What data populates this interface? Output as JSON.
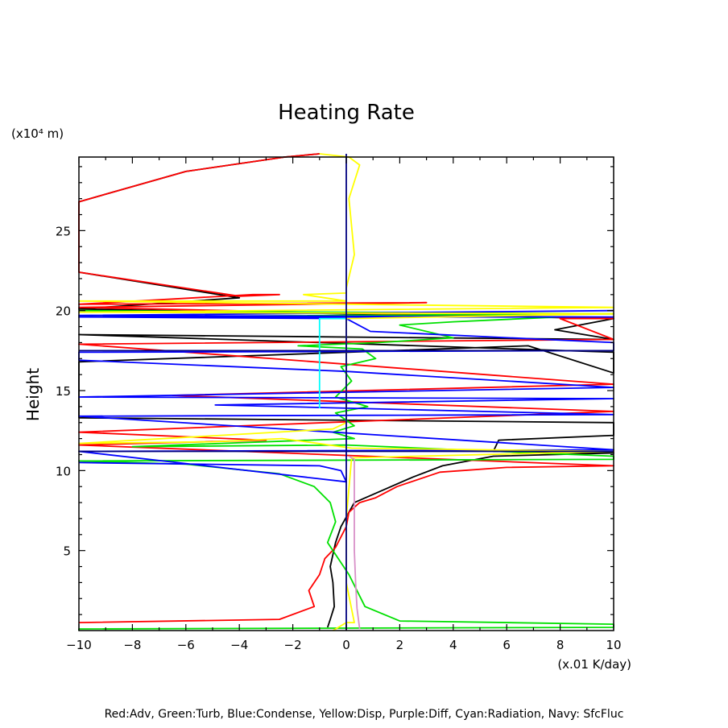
{
  "chart_data": {
    "type": "line",
    "title": "Heating Rate",
    "xlabel": "(x.01 K/day)",
    "ylabel": "Height",
    "y_unit_label": "(x10⁴ m)",
    "xlim": [
      -10,
      10
    ],
    "ylim": [
      0,
      29.6
    ],
    "xticks": [
      "−10",
      "−8",
      "−6",
      "−4",
      "−2",
      "0",
      "2",
      "4",
      "6",
      "8",
      "10"
    ],
    "yticks": [
      "5",
      "10",
      "15",
      "20",
      "25"
    ],
    "ytick_values": [
      5,
      10,
      15,
      20,
      25
    ],
    "grid": false,
    "legend_text": "Red:Adv, Green:Turb, Blue:Condense, Yellow:Disp, Purple:Diff, Cyan:Radiation, Navy: SfcFluc",
    "series": [
      {
        "color": "#000000",
        "points": [
          [
            -0.7,
            0.2
          ],
          [
            -0.6,
            0.7
          ],
          [
            -0.45,
            1.5
          ],
          [
            -0.5,
            3
          ],
          [
            -0.6,
            4
          ],
          [
            -0.4,
            5.5
          ],
          [
            -0.2,
            6.5
          ],
          [
            0.3,
            8
          ],
          [
            1.4,
            8.8
          ],
          [
            2.5,
            9.6
          ],
          [
            3.6,
            10.3
          ],
          [
            5.5,
            10.9
          ],
          [
            10,
            11.1
          ],
          [
            5.5,
            11.2
          ],
          [
            5.7,
            11.9
          ],
          [
            10,
            12.2
          ],
          [
            10,
            13
          ],
          [
            -10,
            13.3
          ],
          [
            -10,
            16.8
          ],
          [
            6.8,
            17.8
          ],
          [
            10,
            16.1
          ],
          [
            10,
            17.4
          ],
          [
            -10,
            18.5
          ],
          [
            10,
            18.2
          ],
          [
            7.8,
            18.8
          ],
          [
            10,
            19.5
          ],
          [
            -10,
            20.1
          ],
          [
            -4,
            20.8
          ],
          [
            -10,
            22.4
          ],
          [
            -10,
            26.8
          ],
          [
            -6,
            28.7
          ],
          [
            -2.3,
            29.6
          ],
          [
            -1,
            29.8
          ]
        ]
      },
      {
        "color": "#ff0000",
        "points": [
          [
            -10,
            0.5
          ],
          [
            -2.5,
            0.7
          ],
          [
            -1.2,
            1.5
          ],
          [
            -1.4,
            2.5
          ],
          [
            -1.0,
            3.5
          ],
          [
            -0.8,
            4.5
          ],
          [
            -0.4,
            5.2
          ],
          [
            0,
            6.5
          ],
          [
            0.1,
            7.4
          ],
          [
            0.5,
            8
          ],
          [
            1.1,
            8.3
          ],
          [
            1.9,
            9
          ],
          [
            3.5,
            9.9
          ],
          [
            6,
            10.2
          ],
          [
            10,
            10.3
          ],
          [
            -10,
            11.6
          ],
          [
            -3,
            11.9
          ],
          [
            -10,
            12.4
          ],
          [
            10,
            13.7
          ],
          [
            -6.5,
            14.7
          ],
          [
            10,
            15.4
          ],
          [
            -10,
            17.9
          ],
          [
            10,
            18.2
          ],
          [
            8,
            19.5
          ],
          [
            10,
            19.5
          ],
          [
            -10,
            20.2
          ],
          [
            3,
            20.5
          ],
          [
            -10,
            20.4
          ],
          [
            -3.5,
            21.0
          ],
          [
            -2.5,
            21.0
          ],
          [
            -4,
            20.9
          ],
          [
            -10,
            22.4
          ],
          [
            -10,
            26.8
          ],
          [
            -6,
            28.7
          ],
          [
            -2.3,
            29.6
          ],
          [
            -1,
            29.8
          ]
        ]
      },
      {
        "color": "#00e000",
        "points": [
          [
            -10,
            0
          ],
          [
            -10,
            0.1
          ],
          [
            10,
            0.2
          ],
          [
            10,
            0.4
          ],
          [
            2,
            0.6
          ],
          [
            0.7,
            1.5
          ],
          [
            0.1,
            3.5
          ],
          [
            -0.7,
            5.5
          ],
          [
            -0.4,
            6.8
          ],
          [
            -0.6,
            8
          ],
          [
            -1.2,
            9
          ],
          [
            -2.5,
            9.8
          ],
          [
            -6,
            10.4
          ],
          [
            -10,
            10.6
          ],
          [
            10,
            10.7
          ],
          [
            10,
            10.9
          ],
          [
            0,
            11.6
          ],
          [
            -8,
            11.5
          ],
          [
            0.3,
            12.0
          ],
          [
            -0.5,
            12.4
          ],
          [
            0.3,
            12.8
          ],
          [
            -0.4,
            13.6
          ],
          [
            0.8,
            14.0
          ],
          [
            -0.4,
            14.6
          ],
          [
            0.2,
            15.6
          ],
          [
            -0.2,
            16.5
          ],
          [
            1.1,
            17.0
          ],
          [
            0.6,
            17.6
          ],
          [
            -1.8,
            17.8
          ],
          [
            1.2,
            18.0
          ],
          [
            4,
            18.3
          ],
          [
            2,
            19.1
          ],
          [
            4,
            19.3
          ],
          [
            8,
            19.6
          ],
          [
            -10,
            19.6
          ],
          [
            10,
            19.8
          ],
          [
            -10,
            20.0
          ]
        ]
      },
      {
        "color": "#0000ff",
        "points": [
          [
            -10,
            10.5
          ],
          [
            -1.0,
            10.3
          ],
          [
            -0.2,
            10.0
          ],
          [
            0,
            9.3
          ],
          [
            -10,
            11.2
          ],
          [
            10,
            11.3
          ],
          [
            -10,
            13.4
          ],
          [
            10,
            13.5
          ],
          [
            -4.9,
            14.1
          ],
          [
            10,
            14.5
          ],
          [
            -10,
            14.6
          ],
          [
            10,
            15.2
          ],
          [
            6,
            15.6
          ],
          [
            0,
            16.2
          ],
          [
            -10,
            16.9
          ],
          [
            -10,
            17.4
          ],
          [
            10,
            17.5
          ],
          [
            10,
            18.0
          ],
          [
            0.9,
            18.7
          ],
          [
            0,
            19.5
          ],
          [
            -10,
            19.6
          ],
          [
            10,
            19.6
          ],
          [
            -10,
            19.7
          ],
          [
            10,
            20.0
          ]
        ]
      },
      {
        "color": "#ffff00",
        "points": [
          [
            -0.5,
            0
          ],
          [
            0,
            0.5
          ],
          [
            0.3,
            0.5
          ],
          [
            0,
            3
          ],
          [
            0,
            7
          ],
          [
            0.2,
            10.8
          ],
          [
            10,
            11.2
          ],
          [
            0.2,
            11.4
          ],
          [
            -1.5,
            11.8
          ],
          [
            -2.4,
            12.0
          ],
          [
            -5,
            11.8
          ],
          [
            -10,
            11.7
          ],
          [
            -0.5,
            12.6
          ],
          [
            0,
            13.0
          ],
          [
            0,
            19.5
          ],
          [
            10,
            19.8
          ],
          [
            -10,
            19.9
          ],
          [
            10,
            20.2
          ],
          [
            -10,
            20.6
          ],
          [
            0,
            20.6
          ],
          [
            -1.6,
            21.0
          ],
          [
            0,
            21.1
          ],
          [
            0,
            21.4
          ],
          [
            0.3,
            23.5
          ],
          [
            0.1,
            27
          ],
          [
            0.5,
            29.1
          ],
          [
            0.1,
            29.6
          ],
          [
            -1,
            29.8
          ]
        ]
      },
      {
        "color": "#d890c8",
        "points": [
          [
            0.5,
            0.1
          ],
          [
            0.4,
            1.4
          ],
          [
            0.35,
            3
          ],
          [
            0.3,
            5
          ],
          [
            0.3,
            8
          ],
          [
            0.3,
            10.7
          ],
          [
            0.1,
            10.9
          ]
        ]
      },
      {
        "color": "#00ffff",
        "points": [
          [
            -1.0,
            13.9
          ],
          [
            -1.0,
            19.5
          ],
          [
            0,
            19.5
          ]
        ]
      },
      {
        "color": "#000080",
        "points": [
          [
            0,
            0
          ],
          [
            0,
            29.8
          ]
        ]
      },
      {
        "color": "#000080",
        "points": [
          [
            -10,
            11.2
          ],
          [
            10,
            11.2
          ]
        ]
      },
      {
        "color": "#000080",
        "points": [
          [
            -10,
            17.5
          ],
          [
            10,
            17.5
          ]
        ]
      }
    ]
  }
}
